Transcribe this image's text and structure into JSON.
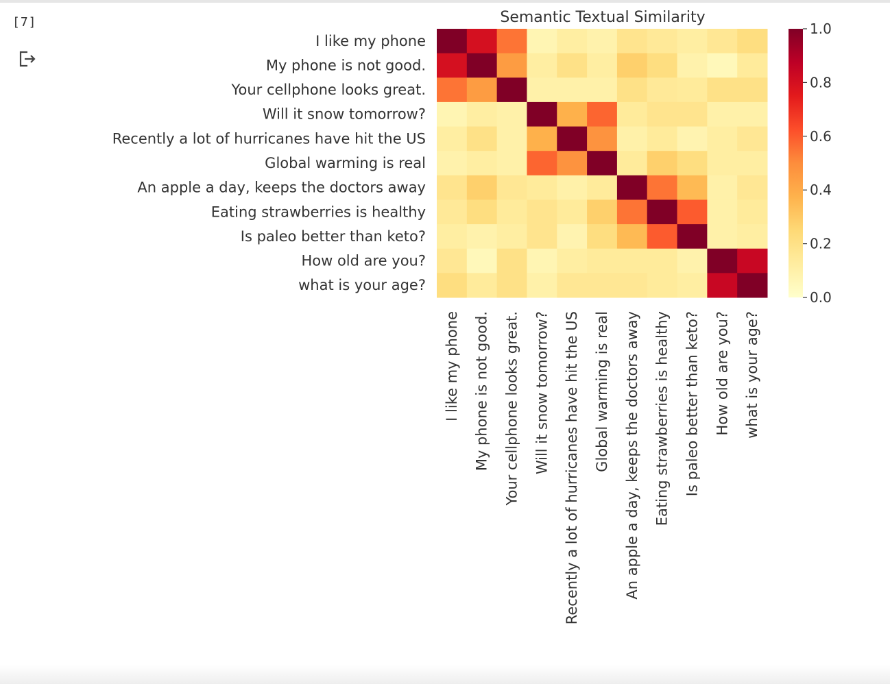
{
  "cell": {
    "execution_count": "[7]",
    "output_icon": "output-redirect-icon"
  },
  "chart_data": {
    "type": "heatmap",
    "title": "Semantic Textual Similarity",
    "row_labels": [
      "I like my phone",
      "My phone is not good.",
      "Your cellphone looks great.",
      "Will it snow tomorrow?",
      "Recently a lot of hurricanes have hit the US",
      "Global warming is real",
      "An apple a day, keeps the doctors away",
      "Eating strawberries is healthy",
      "Is paleo better than keto?",
      "How old are you?",
      "what is your age?"
    ],
    "col_labels": [
      "I like my phone",
      "My phone is not good.",
      "Your cellphone looks great.",
      "Will it snow tomorrow?",
      "Recently a lot of hurricanes have hit the US",
      "Global warming is real",
      "An apple a day, keeps the doctors away",
      "Eating strawberries is healthy",
      "Is paleo better than keto?",
      "How old are you?",
      "what is your age?"
    ],
    "values": [
      [
        1.0,
        0.8,
        0.55,
        0.07,
        0.12,
        0.09,
        0.18,
        0.15,
        0.12,
        0.16,
        0.22
      ],
      [
        0.8,
        1.0,
        0.45,
        0.12,
        0.2,
        0.12,
        0.28,
        0.22,
        0.09,
        0.05,
        0.14
      ],
      [
        0.55,
        0.45,
        1.0,
        0.1,
        0.1,
        0.1,
        0.2,
        0.15,
        0.14,
        0.2,
        0.2
      ],
      [
        0.07,
        0.12,
        0.1,
        1.0,
        0.38,
        0.58,
        0.14,
        0.18,
        0.18,
        0.1,
        0.1
      ],
      [
        0.12,
        0.2,
        0.1,
        0.38,
        1.0,
        0.48,
        0.1,
        0.14,
        0.08,
        0.12,
        0.16
      ],
      [
        0.09,
        0.12,
        0.1,
        0.58,
        0.48,
        1.0,
        0.14,
        0.28,
        0.22,
        0.12,
        0.12
      ],
      [
        0.18,
        0.28,
        0.16,
        0.14,
        0.1,
        0.14,
        1.0,
        0.55,
        0.35,
        0.1,
        0.16
      ],
      [
        0.15,
        0.22,
        0.14,
        0.18,
        0.14,
        0.28,
        0.55,
        1.0,
        0.6,
        0.1,
        0.14
      ],
      [
        0.12,
        0.09,
        0.12,
        0.18,
        0.08,
        0.22,
        0.35,
        0.6,
        1.0,
        0.1,
        0.12
      ],
      [
        0.16,
        0.05,
        0.2,
        0.07,
        0.12,
        0.14,
        0.14,
        0.14,
        0.09,
        1.0,
        0.84
      ],
      [
        0.22,
        0.14,
        0.2,
        0.1,
        0.16,
        0.16,
        0.16,
        0.14,
        0.12,
        0.84,
        1.0
      ]
    ],
    "colormap": "YlOrRd",
    "colormap_stops": [
      "#ffffcc",
      "#ffeda0",
      "#fed976",
      "#feb24c",
      "#fd8d3c",
      "#fc4e2a",
      "#e31a1c",
      "#bd0026",
      "#800026"
    ],
    "colorbar": {
      "vmin": 0.0,
      "vmax": 1.0,
      "ticks": [
        0.0,
        0.2,
        0.4,
        0.6,
        0.8,
        1.0
      ],
      "tick_labels": [
        "0.0",
        "0.2",
        "0.4",
        "0.6",
        "0.8",
        "1.0"
      ]
    },
    "grid": false,
    "legend": "colorbar-right"
  }
}
